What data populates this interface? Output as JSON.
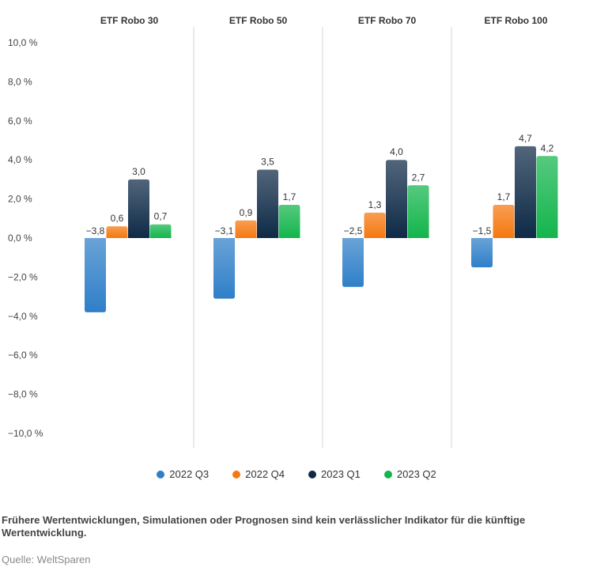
{
  "chart_data": {
    "type": "bar",
    "groups": [
      "ETF Robo 30",
      "ETF Robo 50",
      "ETF Robo 70",
      "ETF Robo 100"
    ],
    "series": [
      {
        "name": "2022 Q3",
        "color": "#2f7fc8",
        "values": [
          -3.8,
          -3.1,
          -2.5,
          -1.5
        ]
      },
      {
        "name": "2022 Q4",
        "color": "#f5780f",
        "values": [
          0.6,
          0.9,
          1.3,
          1.7
        ]
      },
      {
        "name": "2023 Q1",
        "color": "#0e2a47",
        "values": [
          3.0,
          3.5,
          4.0,
          4.7
        ]
      },
      {
        "name": "2023 Q2",
        "color": "#13b54c",
        "values": [
          0.7,
          1.7,
          2.7,
          4.2
        ]
      }
    ],
    "value_labels": [
      [
        "−3,8",
        "0,6",
        "3,0",
        "0,7"
      ],
      [
        "−3,1",
        "0,9",
        "3,5",
        "1,7"
      ],
      [
        "−2,5",
        "1,3",
        "4,0",
        "2,7"
      ],
      [
        "−1,5",
        "1,7",
        "4,7",
        "4,2"
      ]
    ],
    "yticks": [
      10,
      8,
      6,
      4,
      2,
      0,
      -2,
      -4,
      -6,
      -8,
      -10
    ],
    "ytick_labels": [
      "10,0 %",
      "8,0 %",
      "6,0 %",
      "4,0 %",
      "2,0 %",
      "0,0 %",
      "−2,0 %",
      "−4,0 %",
      "−6,0 %",
      "−8,0 %",
      "−10,0 %"
    ],
    "ylim": [
      -10,
      10
    ],
    "legend_position": "bottom-center"
  },
  "footnote": "Frühere Wertentwicklungen, Simulationen oder Prognosen sind kein verlässlicher Indikator für die künftige Wertentwicklung.",
  "source": "Quelle: WeltSparen"
}
